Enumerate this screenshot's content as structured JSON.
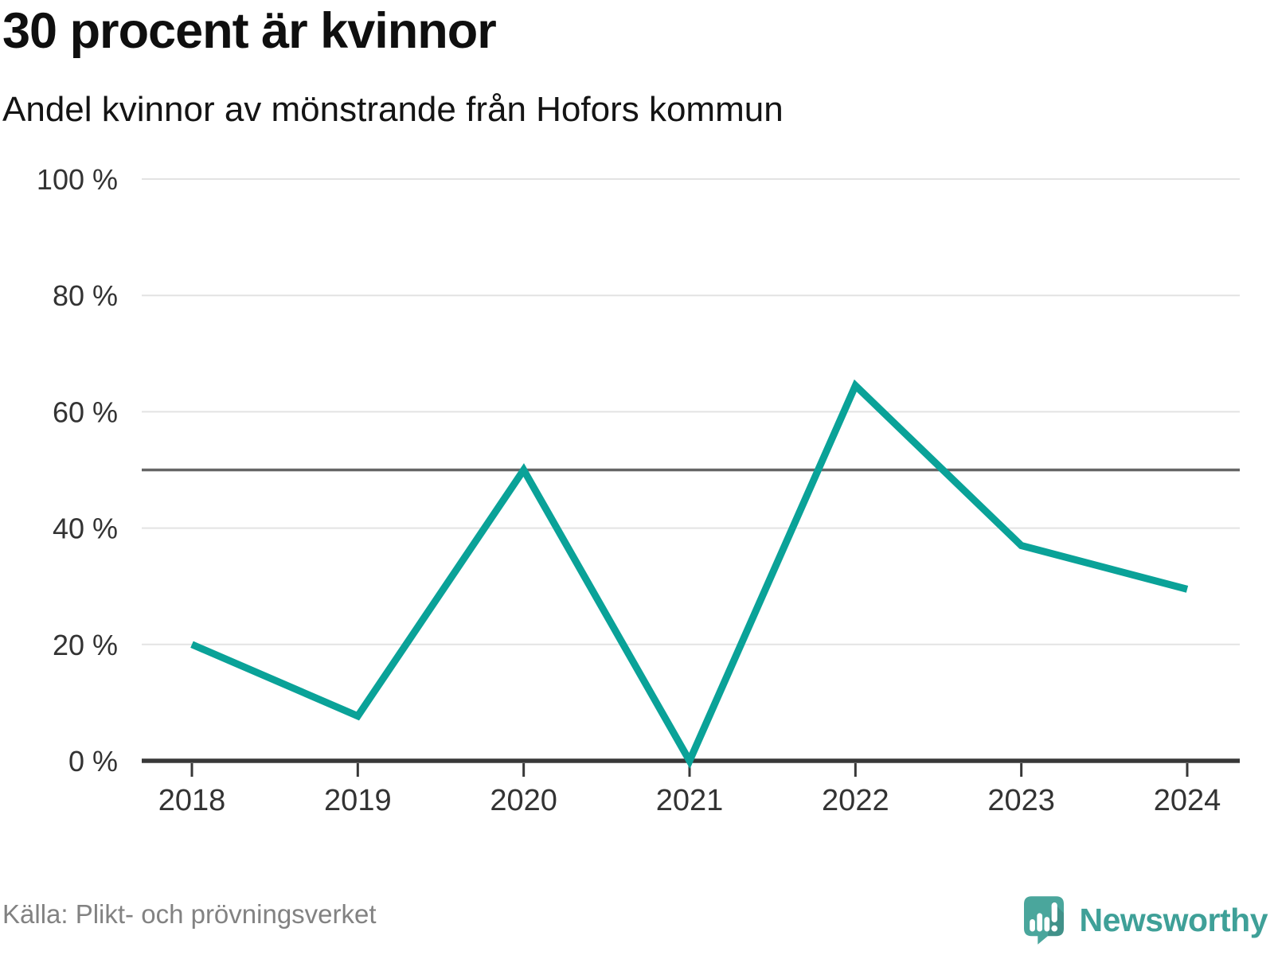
{
  "header": {
    "title": "30 procent är kvinnor",
    "subtitle": "Andel kvinnor av mönstrande från Hofors kommun"
  },
  "footer": {
    "source": "Källa: Plikt- och prövningsverket",
    "brand": "Newsworthy"
  },
  "colors": {
    "line": "#0aa298",
    "gridline": "#e3e3e3",
    "reference_line": "#666666",
    "axis": "#383838",
    "tick_label": "#333333",
    "title_text": "#0f0f0f",
    "source_text": "#828282",
    "brand_teal": "#4aa69c",
    "brand_text": "#3fa098"
  },
  "chart_data": {
    "type": "line",
    "title": "30 procent är kvinnor",
    "subtitle": "Andel kvinnor av mönstrande från Hofors kommun",
    "x": [
      "2018",
      "2019",
      "2020",
      "2021",
      "2022",
      "2023",
      "2024"
    ],
    "series": [
      {
        "name": "Andel kvinnor av mönstrande",
        "values": [
          20,
          7.7,
          50,
          0,
          64.5,
          37,
          29.5
        ]
      }
    ],
    "xlabel": "",
    "ylabel": "",
    "ylim": [
      0,
      100
    ],
    "yticks": [
      0,
      20,
      40,
      60,
      80,
      100
    ],
    "ytick_labels": [
      "0 %",
      "20 %",
      "40 %",
      "60 %",
      "80 %",
      "100 %"
    ],
    "reference_line": 50,
    "grid": "horizontal",
    "legend": "none",
    "source": "Källa: Plikt- och prövningsverket"
  }
}
